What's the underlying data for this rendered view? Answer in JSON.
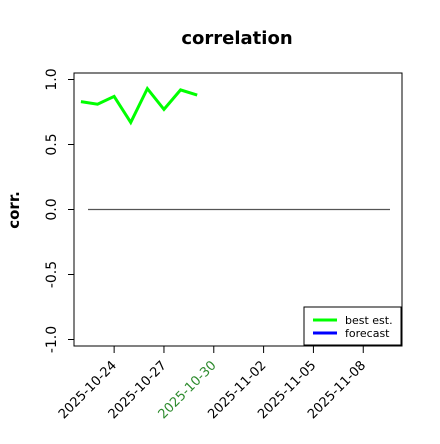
{
  "chart_data": {
    "type": "line",
    "title": "correlation",
    "ylabel": "corr.",
    "xlabel": "",
    "xlim": [
      "2025-10-21T14:00",
      "2025-11-10T08:00"
    ],
    "ylim": [
      -1.05,
      1.05
    ],
    "yticks": [
      -1.0,
      -0.5,
      0.0,
      0.5,
      1.0
    ],
    "ytick_labels": [
      "-1.0",
      "-0.5",
      "0.0",
      "0.5",
      "1.0"
    ],
    "xticks": [
      "2025-10-24",
      "2025-10-27",
      "2025-10-30",
      "2025-11-02",
      "2025-11-05",
      "2025-11-08"
    ],
    "xtick_labels": [
      "2025-10-24",
      "2025-10-27",
      "2025-10-30",
      "2025-11-02",
      "2025-11-05",
      "2025-11-08"
    ],
    "highlighted_tick": "2025-10-30",
    "highlight_color": "#2e8b2e",
    "reference_line": 0.0,
    "legend_position": "lower-right",
    "grid": false,
    "series": [
      {
        "name": "best est.",
        "color": "#00ff00",
        "x": [
          "2025-10-22",
          "2025-10-23",
          "2025-10-24",
          "2025-10-25",
          "2025-10-26",
          "2025-10-27",
          "2025-10-28",
          "2025-10-29",
          "2025-10-30"
        ],
        "values": [
          0.83,
          0.81,
          0.87,
          0.67,
          0.93,
          0.77,
          0.92,
          0.88,
          null
        ]
      },
      {
        "name": "forecast",
        "color": "#0000ff",
        "x": [],
        "values": []
      }
    ]
  }
}
